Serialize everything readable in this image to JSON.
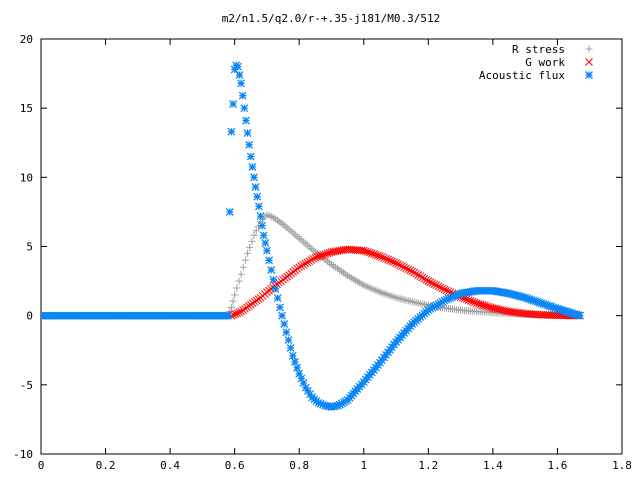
{
  "chart_data": {
    "type": "scatter",
    "title": "m2/n1.5/q2.0/r-+.35-j181/M0.3/512",
    "xlabel": "",
    "ylabel": "",
    "xlim": [
      0,
      1.8
    ],
    "ylim": [
      -10,
      20
    ],
    "xticks": [
      0,
      0.2,
      0.4,
      0.6,
      0.8,
      1,
      1.2,
      1.4,
      1.6,
      1.8
    ],
    "yticks": [
      -10,
      -5,
      0,
      5,
      10,
      15,
      20
    ],
    "xtick_labels": [
      "0",
      "0.2",
      "0.4",
      "0.6",
      "0.8",
      "1",
      "1.2",
      "1.4",
      "1.6",
      "1.8"
    ],
    "ytick_labels": [
      "-10",
      "-5",
      "0",
      "5",
      "10",
      "15",
      "20"
    ],
    "grid": false,
    "legend_position": "top-right",
    "series": [
      {
        "name": "R stress",
        "marker": "plus",
        "color": "#a0a0a0",
        "x": [
          0.0,
          0.58,
          0.59,
          0.6,
          0.62,
          0.64,
          0.66,
          0.68,
          0.7,
          0.72,
          0.75,
          0.8,
          0.85,
          0.9,
          0.95,
          1.0,
          1.05,
          1.1,
          1.15,
          1.2,
          1.25,
          1.3,
          1.35,
          1.4,
          1.45,
          1.5,
          1.55,
          1.6,
          1.67
        ],
        "y": [
          0.0,
          0.0,
          0.6,
          1.5,
          3.0,
          4.5,
          5.8,
          6.8,
          7.3,
          7.1,
          6.6,
          5.6,
          4.6,
          3.7,
          2.9,
          2.2,
          1.7,
          1.3,
          1.0,
          0.75,
          0.55,
          0.4,
          0.3,
          0.22,
          0.15,
          0.1,
          0.06,
          0.03,
          0.0
        ]
      },
      {
        "name": "G work",
        "marker": "cross",
        "color": "#ff0000",
        "x": [
          0.59,
          0.62,
          0.65,
          0.68,
          0.7,
          0.75,
          0.8,
          0.85,
          0.9,
          0.95,
          1.0,
          1.05,
          1.1,
          1.15,
          1.2,
          1.25,
          1.3,
          1.35,
          1.4,
          1.45,
          1.5,
          1.55,
          1.6,
          1.67
        ],
        "y": [
          0.0,
          0.3,
          0.8,
          1.3,
          1.7,
          2.6,
          3.5,
          4.2,
          4.6,
          4.8,
          4.7,
          4.3,
          3.8,
          3.2,
          2.5,
          1.9,
          1.35,
          0.9,
          0.55,
          0.3,
          0.15,
          0.06,
          0.02,
          0.0
        ]
      },
      {
        "name": "Acoustic flux",
        "marker": "star",
        "color": "#0a87f5",
        "x": [
          0.0,
          0.58,
          0.585,
          0.59,
          0.595,
          0.6,
          0.605,
          0.61,
          0.62,
          0.63,
          0.64,
          0.65,
          0.66,
          0.67,
          0.68,
          0.69,
          0.7,
          0.72,
          0.74,
          0.76,
          0.78,
          0.8,
          0.82,
          0.84,
          0.86,
          0.88,
          0.9,
          0.92,
          0.95,
          0.98,
          1.0,
          1.05,
          1.1,
          1.15,
          1.2,
          1.25,
          1.3,
          1.35,
          1.4,
          1.45,
          1.5,
          1.55,
          1.6,
          1.67
        ],
        "y": [
          0.0,
          0.0,
          7.5,
          13.3,
          15.3,
          17.8,
          18.1,
          18.0,
          16.8,
          15.0,
          13.2,
          11.5,
          10.0,
          8.6,
          7.2,
          5.8,
          4.7,
          2.6,
          0.6,
          -1.2,
          -2.9,
          -4.2,
          -5.2,
          -5.9,
          -6.3,
          -6.5,
          -6.6,
          -6.5,
          -6.1,
          -5.3,
          -4.8,
          -3.4,
          -1.9,
          -0.6,
          0.4,
          1.1,
          1.6,
          1.8,
          1.8,
          1.6,
          1.3,
          0.9,
          0.5,
          0.0
        ]
      }
    ]
  }
}
